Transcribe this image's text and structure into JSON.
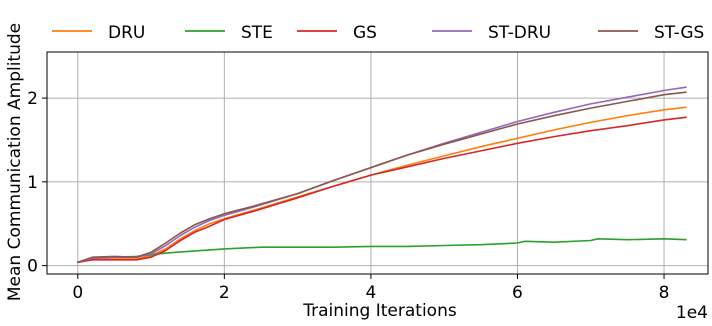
{
  "chart_data": {
    "type": "line",
    "xlabel": "Training Iterations",
    "ylabel": "Mean Communication Amplitude",
    "x_offset_label": "1e4",
    "xlim": [
      -0.42,
      8.6
    ],
    "ylim": [
      -0.1,
      2.55
    ],
    "xticks": [
      0,
      2,
      4,
      6,
      8
    ],
    "xtick_labels": [
      "0",
      "2",
      "4",
      "6",
      "8"
    ],
    "yticks": [
      0,
      1,
      2
    ],
    "ytick_labels": [
      "0",
      "1",
      "2"
    ],
    "grid": true,
    "legend_position": "top, above plot",
    "series": [
      {
        "name": "DRU",
        "color": "#ff7f0e",
        "points": [
          [
            0,
            0.04
          ],
          [
            0.2,
            0.08
          ],
          [
            0.5,
            0.08
          ],
          [
            0.8,
            0.08
          ],
          [
            1.0,
            0.12
          ],
          [
            1.2,
            0.2
          ],
          [
            1.4,
            0.32
          ],
          [
            1.6,
            0.42
          ],
          [
            1.8,
            0.5
          ],
          [
            2.0,
            0.56
          ],
          [
            2.4,
            0.66
          ],
          [
            3.0,
            0.82
          ],
          [
            3.5,
            0.95
          ],
          [
            4.0,
            1.08
          ],
          [
            4.5,
            1.2
          ],
          [
            5.0,
            1.31
          ],
          [
            5.5,
            1.42
          ],
          [
            6.0,
            1.52
          ],
          [
            6.5,
            1.62
          ],
          [
            7.0,
            1.71
          ],
          [
            7.5,
            1.79
          ],
          [
            8.0,
            1.86
          ],
          [
            8.3,
            1.89
          ]
        ]
      },
      {
        "name": "STE",
        "color": "#2ca02c",
        "points": [
          [
            0,
            0.04
          ],
          [
            0.2,
            0.09
          ],
          [
            0.5,
            0.1
          ],
          [
            0.8,
            0.11
          ],
          [
            1.0,
            0.13
          ],
          [
            1.2,
            0.15
          ],
          [
            1.5,
            0.17
          ],
          [
            2.0,
            0.2
          ],
          [
            2.5,
            0.22
          ],
          [
            3.0,
            0.22
          ],
          [
            3.5,
            0.22
          ],
          [
            4.0,
            0.23
          ],
          [
            4.5,
            0.23
          ],
          [
            5.0,
            0.24
          ],
          [
            5.5,
            0.25
          ],
          [
            6.0,
            0.27
          ],
          [
            6.1,
            0.29
          ],
          [
            6.5,
            0.28
          ],
          [
            7.0,
            0.3
          ],
          [
            7.1,
            0.32
          ],
          [
            7.5,
            0.31
          ],
          [
            8.0,
            0.32
          ],
          [
            8.3,
            0.31
          ]
        ]
      },
      {
        "name": "GS",
        "color": "#d62728",
        "points": [
          [
            0,
            0.04
          ],
          [
            0.2,
            0.07
          ],
          [
            0.5,
            0.07
          ],
          [
            0.8,
            0.07
          ],
          [
            1.0,
            0.1
          ],
          [
            1.2,
            0.18
          ],
          [
            1.4,
            0.3
          ],
          [
            1.6,
            0.4
          ],
          [
            1.8,
            0.47
          ],
          [
            2.0,
            0.55
          ],
          [
            2.4,
            0.65
          ],
          [
            3.0,
            0.81
          ],
          [
            3.5,
            0.95
          ],
          [
            4.0,
            1.08
          ],
          [
            4.5,
            1.18
          ],
          [
            5.0,
            1.28
          ],
          [
            5.5,
            1.37
          ],
          [
            6.0,
            1.46
          ],
          [
            6.5,
            1.54
          ],
          [
            7.0,
            1.61
          ],
          [
            7.5,
            1.67
          ],
          [
            8.0,
            1.74
          ],
          [
            8.3,
            1.77
          ]
        ]
      },
      {
        "name": "ST-DRU",
        "color": "#9467bd",
        "points": [
          [
            0,
            0.04
          ],
          [
            0.2,
            0.09
          ],
          [
            0.5,
            0.1
          ],
          [
            0.8,
            0.1
          ],
          [
            1.0,
            0.14
          ],
          [
            1.2,
            0.24
          ],
          [
            1.4,
            0.36
          ],
          [
            1.6,
            0.46
          ],
          [
            1.8,
            0.54
          ],
          [
            2.0,
            0.6
          ],
          [
            2.4,
            0.7
          ],
          [
            3.0,
            0.86
          ],
          [
            3.5,
            1.02
          ],
          [
            4.0,
            1.17
          ],
          [
            4.5,
            1.32
          ],
          [
            5.0,
            1.46
          ],
          [
            5.5,
            1.59
          ],
          [
            6.0,
            1.72
          ],
          [
            6.5,
            1.83
          ],
          [
            7.0,
            1.93
          ],
          [
            7.5,
            2.01
          ],
          [
            8.0,
            2.09
          ],
          [
            8.3,
            2.13
          ]
        ]
      },
      {
        "name": "ST-GS",
        "color": "#8c564b",
        "points": [
          [
            0,
            0.04
          ],
          [
            0.2,
            0.1
          ],
          [
            0.5,
            0.11
          ],
          [
            0.8,
            0.1
          ],
          [
            1.0,
            0.16
          ],
          [
            1.2,
            0.27
          ],
          [
            1.4,
            0.39
          ],
          [
            1.6,
            0.49
          ],
          [
            1.8,
            0.56
          ],
          [
            2.0,
            0.62
          ],
          [
            2.4,
            0.71
          ],
          [
            3.0,
            0.86
          ],
          [
            3.5,
            1.02
          ],
          [
            4.0,
            1.17
          ],
          [
            4.5,
            1.32
          ],
          [
            5.0,
            1.45
          ],
          [
            5.5,
            1.57
          ],
          [
            6.0,
            1.69
          ],
          [
            6.5,
            1.79
          ],
          [
            7.0,
            1.88
          ],
          [
            7.5,
            1.96
          ],
          [
            8.0,
            2.04
          ],
          [
            8.3,
            2.07
          ]
        ]
      }
    ]
  }
}
